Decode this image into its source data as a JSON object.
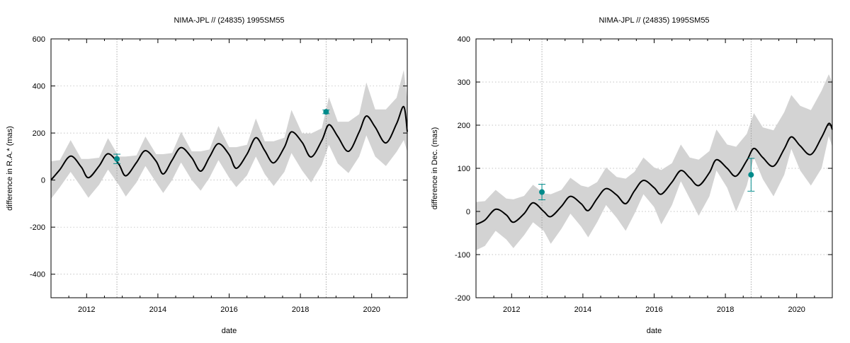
{
  "chart_data": [
    {
      "type": "line",
      "title": "NIMA-JPL // (24835) 1995SM55",
      "xlabel": "date",
      "ylabel": "difference in R.A.* (mas)",
      "xlim": [
        2011.0,
        2021.0
      ],
      "ylim": [
        -500,
        600
      ],
      "xticks": [
        2012,
        2014,
        2016,
        2018,
        2020
      ],
      "xtick_labels": [
        "2012",
        "2014",
        "2016",
        "2018",
        "2020"
      ],
      "yticks": [
        -400,
        -200,
        0,
        200,
        400,
        600
      ],
      "ytick_labels": [
        "-400",
        "-200",
        "0",
        "200",
        "400",
        "600"
      ],
      "grid": "dotted",
      "observation_epochs": [
        2012.85,
        2018.72
      ],
      "series": [
        {
          "kind": "line",
          "x": [
            2011.0,
            2011.25,
            2011.55,
            2011.85,
            2012.05,
            2012.35,
            2012.6,
            2012.9,
            2013.1,
            2013.4,
            2013.65,
            2013.95,
            2014.15,
            2014.4,
            2014.65,
            2014.95,
            2015.2,
            2015.45,
            2015.7,
            2016.0,
            2016.2,
            2016.5,
            2016.75,
            2017.0,
            2017.25,
            2017.55,
            2017.75,
            2018.05,
            2018.3,
            2018.6,
            2018.8,
            2019.05,
            2019.35,
            2019.65,
            2019.85,
            2020.1,
            2020.4,
            2020.7,
            2020.9,
            2021.0
          ],
          "y": [
            0,
            45,
            102,
            55,
            10,
            60,
            112,
            68,
            18,
            75,
            125,
            80,
            26,
            85,
            138,
            95,
            38,
            98,
            155,
            108,
            50,
            110,
            180,
            125,
            73,
            140,
            205,
            160,
            98,
            168,
            235,
            185,
            122,
            205,
            272,
            225,
            158,
            240,
            312,
            205
          ]
        },
        {
          "kind": "band",
          "x": [
            2011.0,
            2011.25,
            2011.55,
            2011.85,
            2012.05,
            2012.35,
            2012.6,
            2012.9,
            2013.1,
            2013.4,
            2013.65,
            2013.95,
            2014.15,
            2014.4,
            2014.65,
            2014.95,
            2015.2,
            2015.45,
            2015.7,
            2016.0,
            2016.2,
            2016.5,
            2016.75,
            2017.0,
            2017.25,
            2017.55,
            2017.75,
            2018.05,
            2018.3,
            2018.6,
            2018.8,
            2019.05,
            2019.35,
            2019.65,
            2019.85,
            2020.1,
            2020.4,
            2020.7,
            2020.9,
            2021.0
          ],
          "upper": [
            80,
            85,
            170,
            90,
            90,
            95,
            178,
            100,
            100,
            105,
            185,
            110,
            110,
            115,
            205,
            122,
            122,
            130,
            230,
            140,
            140,
            150,
            262,
            165,
            165,
            180,
            298,
            198,
            198,
            220,
            352,
            248,
            248,
            280,
            415,
            300,
            300,
            350,
            468,
            340
          ],
          "lower": [
            -80,
            -30,
            35,
            -30,
            -75,
            -20,
            45,
            -20,
            -70,
            -10,
            60,
            -10,
            -55,
            0,
            75,
            0,
            -45,
            10,
            85,
            10,
            -30,
            20,
            100,
            25,
            -25,
            35,
            115,
            40,
            -10,
            65,
            150,
            70,
            30,
            100,
            190,
            100,
            60,
            120,
            170,
            120
          ]
        },
        {
          "kind": "points",
          "x": [
            2012.85,
            2018.72
          ],
          "y": [
            90,
            290
          ],
          "err": [
            20,
            8
          ]
        }
      ]
    },
    {
      "type": "line",
      "title": "NIMA-JPL // (24835) 1995SM55",
      "xlabel": "date",
      "ylabel": "difference in Dec. (mas)",
      "xlim": [
        2011.0,
        2021.0
      ],
      "ylim": [
        -200,
        400
      ],
      "xticks": [
        2012,
        2014,
        2016,
        2018,
        2020
      ],
      "xtick_labels": [
        "2012",
        "2014",
        "2016",
        "2018",
        "2020"
      ],
      "yticks": [
        -200,
        -100,
        0,
        100,
        200,
        300,
        400
      ],
      "ytick_labels": [
        "-200",
        "-100",
        "0",
        "100",
        "200",
        "300",
        "400"
      ],
      "grid": "dotted",
      "observation_epochs": [
        2012.85,
        2018.72
      ],
      "series": [
        {
          "kind": "line",
          "x": [
            2011.0,
            2011.25,
            2011.55,
            2011.85,
            2012.05,
            2012.35,
            2012.6,
            2012.9,
            2013.1,
            2013.4,
            2013.65,
            2013.95,
            2014.15,
            2014.4,
            2014.65,
            2014.95,
            2015.2,
            2015.45,
            2015.7,
            2016.0,
            2016.2,
            2016.5,
            2016.75,
            2017.0,
            2017.25,
            2017.55,
            2017.75,
            2018.05,
            2018.3,
            2018.6,
            2018.8,
            2019.05,
            2019.35,
            2019.65,
            2019.85,
            2020.1,
            2020.4,
            2020.7,
            2020.9,
            2021.0
          ],
          "y": [
            -30,
            -20,
            5,
            -8,
            -25,
            -5,
            20,
            0,
            -12,
            12,
            35,
            18,
            2,
            30,
            53,
            38,
            18,
            48,
            72,
            55,
            40,
            68,
            95,
            78,
            60,
            90,
            120,
            100,
            82,
            118,
            146,
            125,
            105,
            145,
            173,
            152,
            132,
            172,
            204,
            190
          ]
        },
        {
          "kind": "band",
          "x": [
            2011.0,
            2011.25,
            2011.55,
            2011.85,
            2012.05,
            2012.35,
            2012.6,
            2012.9,
            2013.1,
            2013.4,
            2013.65,
            2013.95,
            2014.15,
            2014.4,
            2014.65,
            2014.95,
            2015.2,
            2015.45,
            2015.7,
            2016.0,
            2016.2,
            2016.5,
            2016.75,
            2017.0,
            2017.25,
            2017.55,
            2017.75,
            2018.05,
            2018.3,
            2018.6,
            2018.8,
            2019.05,
            2019.35,
            2019.65,
            2019.85,
            2020.1,
            2020.4,
            2020.7,
            2020.9,
            2021.0
          ],
          "upper": [
            22,
            24,
            50,
            30,
            28,
            36,
            62,
            42,
            40,
            50,
            78,
            60,
            56,
            68,
            102,
            80,
            76,
            92,
            125,
            102,
            96,
            112,
            155,
            125,
            120,
            140,
            190,
            155,
            150,
            180,
            228,
            195,
            188,
            230,
            270,
            245,
            235,
            280,
            318,
            300
          ],
          "lower": [
            -90,
            -80,
            -45,
            -65,
            -85,
            -55,
            -25,
            -45,
            -75,
            -40,
            -5,
            -35,
            -60,
            -25,
            15,
            -15,
            -45,
            -5,
            40,
            10,
            -30,
            15,
            70,
            30,
            -10,
            35,
            95,
            55,
            0,
            60,
            125,
            75,
            35,
            85,
            145,
            95,
            60,
            100,
            175,
            150
          ]
        },
        {
          "kind": "points",
          "x": [
            2012.85,
            2018.72
          ],
          "y": [
            45,
            85
          ],
          "err": [
            18,
            38
          ]
        }
      ]
    }
  ],
  "colors": {
    "band": "#d3d3d3",
    "line": "#000000",
    "points": "#008b8b",
    "grid": "#b0b0b0",
    "axes": "#000000"
  }
}
